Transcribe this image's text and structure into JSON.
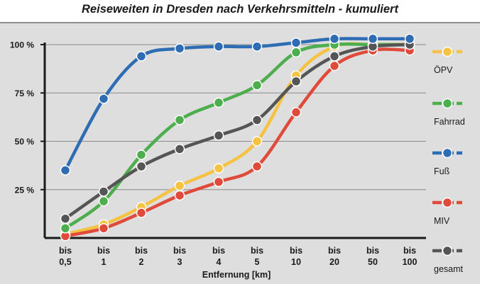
{
  "chart_data": {
    "type": "line",
    "title": "Reiseweiten in Dresden nach Verkehrsmitteln - kumuliert",
    "xlabel": "Entfernung [km]",
    "ylabel": "",
    "categories": [
      "bis 0,5",
      "bis 1",
      "bis 2",
      "bis 3",
      "bis 4",
      "bis 5",
      "bis 10",
      "bis 20",
      "bis 50",
      "bis 100"
    ],
    "category_lines": [
      [
        "bis",
        "0,5"
      ],
      [
        "bis",
        "1"
      ],
      [
        "bis",
        "2"
      ],
      [
        "bis",
        "3"
      ],
      [
        "bis",
        "4"
      ],
      [
        "bis",
        "5"
      ],
      [
        "bis",
        "10"
      ],
      [
        "bis",
        "20"
      ],
      [
        "bis",
        "50"
      ],
      [
        "bis",
        "100"
      ]
    ],
    "yticks": [
      25,
      50,
      75,
      100
    ],
    "ytick_labels": [
      "25 %",
      "50 %",
      "75 %",
      "100 %"
    ],
    "ylim": [
      0,
      100
    ],
    "grid": true,
    "legend_position": "right",
    "series": [
      {
        "name": "ÖPV",
        "color": "#f5c242",
        "values": [
          2,
          7,
          16,
          27,
          36,
          50,
          84,
          99,
          100,
          100
        ]
      },
      {
        "name": "Fahrrad",
        "color": "#4cae4c",
        "values": [
          5,
          19,
          43,
          61,
          70,
          79,
          96,
          100,
          100,
          100
        ]
      },
      {
        "name": "Fuß",
        "color": "#2e6db4",
        "values": [
          35,
          72,
          94,
          98,
          99,
          99,
          101,
          103,
          103,
          103
        ]
      },
      {
        "name": "MIV",
        "color": "#e04a3a",
        "values": [
          1,
          5,
          13,
          22,
          29,
          37,
          65,
          89,
          97,
          97
        ]
      },
      {
        "name": "gesamt",
        "color": "#555555",
        "values": [
          10,
          24,
          37,
          46,
          53,
          61,
          81,
          94,
          99,
          100
        ]
      }
    ]
  }
}
